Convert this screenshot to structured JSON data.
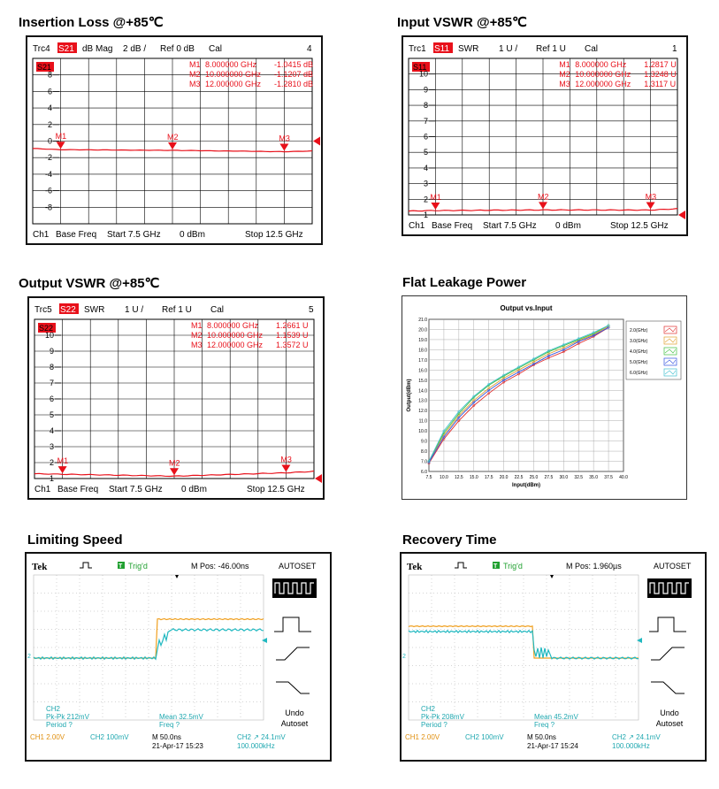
{
  "colors": {
    "marker_red": "#e8101a",
    "grid": "#000000",
    "scope_bg": "#ffffff",
    "ch1": "#f0a020",
    "ch2": "#20b8c0",
    "scope_text": "#20a8b0",
    "scope_orange": "#e09010"
  },
  "vna": [
    {
      "title": "Insertion Loss @+85℃",
      "header": {
        "trc": "Trc4",
        "param": "S21",
        "fmt": "dB Mag",
        "scale": "2 dB /",
        "ref": "Ref 0 dB",
        "cal": "Cal",
        "num": "4"
      },
      "badge": "S21",
      "y_ticks": [
        "8",
        "6",
        "4",
        "2",
        "0",
        "-2",
        "-4",
        "-6",
        "-8"
      ],
      "markers_text": [
        [
          "M1",
          "8.000000 GHz",
          "-1.0415 dB"
        ],
        [
          "M2",
          "10.000000 GHz",
          "-1.1207 dB"
        ],
        [
          "M3",
          "12.000000 GHz",
          "-1.2810 dB"
        ]
      ],
      "marker_labels": [
        "M1",
        "M2",
        "M3"
      ],
      "footer": {
        "ch": "Ch1",
        "base": "Base Freq",
        "start": "Start  7.5 GHz",
        "power": "0 dBm",
        "stop": "Stop  12.5 GHz"
      }
    },
    {
      "title": "Input VSWR @+85℃",
      "header": {
        "trc": "Trc1",
        "param": "S11",
        "fmt": "SWR",
        "scale": "1 U /",
        "ref": "Ref 1 U",
        "cal": "Cal",
        "num": "1"
      },
      "badge": "S11",
      "y_ticks": [
        "10",
        "9",
        "8",
        "7",
        "6",
        "5",
        "4",
        "3",
        "2",
        "1"
      ],
      "markers_text": [
        [
          "M1",
          "8.000000 GHz",
          "1.2817 U"
        ],
        [
          "M2",
          "10.000000 GHz",
          "1.3248 U"
        ],
        [
          "M3",
          "12.000000 GHz",
          "1.3117 U"
        ]
      ],
      "marker_labels": [
        "M1",
        "M2",
        "M3"
      ],
      "footer": {
        "ch": "Ch1",
        "base": "Base Freq",
        "start": "Start  7.5 GHz",
        "power": "0 dBm",
        "stop": "Stop  12.5 GHz"
      }
    },
    {
      "title": "Output VSWR @+85℃",
      "header": {
        "trc": "Trc5",
        "param": "S22",
        "fmt": "SWR",
        "scale": "1 U /",
        "ref": "Ref 1 U",
        "cal": "Cal",
        "num": "5"
      },
      "badge": "S22",
      "y_ticks": [
        "10",
        "9",
        "8",
        "7",
        "6",
        "5",
        "4",
        "3",
        "2",
        "1"
      ],
      "markers_text": [
        [
          "M1",
          "8.000000 GHz",
          "1.2661 U"
        ],
        [
          "M2",
          "10.000000 GHz",
          "1.1539 U"
        ],
        [
          "M3",
          "12.000000 GHz",
          "1.3572 U"
        ]
      ],
      "marker_labels": [
        "M1",
        "M2",
        "M3"
      ],
      "footer": {
        "ch": "Ch1",
        "base": "Base Freq",
        "start": "Start  7.5 GHz",
        "power": "0 dBm",
        "stop": "Stop  12.5 GHz"
      }
    }
  ],
  "leakage": {
    "title": "Flat Leakage Power",
    "chart_title": "Output vs.Input",
    "xlabel": "Input(dBm)",
    "ylabel": "Output(dBm)",
    "x_ticks": [
      "7.5",
      "10.0",
      "12.5",
      "15.0",
      "17.5",
      "20.0",
      "22.5",
      "25.0",
      "27.5",
      "30.0",
      "32.5",
      "35.0",
      "37.5",
      "40.0"
    ],
    "y_ticks": [
      "21.0",
      "20.0",
      "19.0",
      "18.0",
      "17.0",
      "16.0",
      "15.0",
      "14.0",
      "13.0",
      "12.0",
      "11.0",
      "10.0",
      "9.0",
      "8.0",
      "7.0",
      "6.0"
    ],
    "legend": [
      "2.0(GHz)",
      "3.0(GHz)",
      "4.0(GHz)",
      "5.0(GHz)",
      "6.0(GHz)"
    ]
  },
  "scopes": [
    {
      "title": "Limiting Speed",
      "brand": "Tek",
      "trig": "Trig'd",
      "mpos": "M Pos: -46.00ns",
      "autoset": "AUTOSET",
      "meas": {
        "ch": "CH2",
        "pkpk": "Pk-Pk 212mV",
        "period": "Period ?",
        "mean": "Mean 32.5mV",
        "freq": "Freq ?"
      },
      "undo": "Undo",
      "undo2": "Autoset",
      "bottom": {
        "ch1": "CH1  2.00V",
        "ch2": "CH2  100mV",
        "time": "M 50.0ns",
        "date": "21-Apr-17 15:23",
        "trig": "CH2 ↗ 24.1mV",
        "freq": "100.000kHz"
      }
    },
    {
      "title": "Recovery Time",
      "brand": "Tek",
      "trig": "Trig'd",
      "mpos": "M Pos: 1.960µs",
      "autoset": "AUTOSET",
      "meas": {
        "ch": "CH2",
        "pkpk": "Pk-Pk 208mV",
        "period": "Period ?",
        "mean": "Mean 45.2mV",
        "freq": "Freq ?"
      },
      "undo": "Undo",
      "undo2": "Autoset",
      "bottom": {
        "ch1": "CH1  2.00V",
        "ch2": "CH2  100mV",
        "time": "M 50.0ns",
        "date": "21-Apr-17 15:24",
        "trig": "CH2 ↗ 24.1mV",
        "freq": "100.000kHz"
      }
    }
  ],
  "chart_data": [
    {
      "type": "line",
      "title": "",
      "ylabel": "",
      "x": [
        7.5,
        8,
        10,
        12,
        12.5
      ],
      "series": [
        {
          "name": "S21",
          "values": [
            -0.9,
            -1.04,
            -1.12,
            -1.28,
            -1.2
          ]
        }
      ],
      "ylim": [
        -10,
        10
      ],
      "xlim": [
        7.5,
        12.5
      ]
    },
    {
      "type": "line",
      "title": "",
      "ylabel": "",
      "x": [
        7.5,
        8,
        10,
        12,
        12.5
      ],
      "series": [
        {
          "name": "S11",
          "values": [
            1.25,
            1.28,
            1.32,
            1.31,
            1.4
          ]
        }
      ],
      "ylim": [
        1,
        11
      ],
      "xlim": [
        7.5,
        12.5
      ]
    },
    {
      "type": "line",
      "title": "",
      "ylabel": "",
      "x": [
        7.5,
        8,
        10,
        12,
        12.5
      ],
      "series": [
        {
          "name": "S22",
          "values": [
            1.3,
            1.27,
            1.15,
            1.36,
            1.45
          ]
        }
      ],
      "ylim": [
        1,
        11
      ],
      "xlim": [
        7.5,
        12.5
      ]
    },
    {
      "type": "line",
      "title": "Output vs.Input",
      "xlabel": "Input(dBm)",
      "ylabel": "Output(dBm)",
      "xlim": [
        7.5,
        40.0
      ],
      "ylim": [
        6.0,
        21.0
      ],
      "x": [
        7.5,
        10,
        12.5,
        15,
        17.5,
        20,
        22.5,
        25,
        27.5,
        30,
        32.5,
        35,
        37.5
      ],
      "series": [
        {
          "name": "2.0(GHz)",
          "values": [
            6.8,
            9.2,
            11.0,
            12.5,
            13.7,
            14.8,
            15.6,
            16.5,
            17.2,
            17.8,
            18.6,
            19.3,
            20.2
          ]
        },
        {
          "name": "3.0(GHz)",
          "values": [
            7.0,
            9.6,
            11.5,
            13.0,
            14.2,
            15.2,
            16.0,
            16.8,
            17.6,
            18.2,
            18.9,
            19.5,
            20.3
          ]
        },
        {
          "name": "4.0(GHz)",
          "values": [
            7.0,
            9.8,
            11.7,
            13.3,
            14.5,
            15.4,
            16.2,
            17.0,
            17.8,
            18.4,
            19.0,
            19.6,
            20.4
          ]
        },
        {
          "name": "5.0(GHz)",
          "values": [
            6.9,
            9.4,
            11.3,
            12.8,
            14.0,
            15.0,
            15.8,
            16.6,
            17.4,
            18.0,
            18.8,
            19.4,
            20.2
          ]
        },
        {
          "name": "6.0(GHz)",
          "values": [
            7.0,
            10.0,
            11.9,
            13.4,
            14.6,
            15.5,
            16.3,
            17.1,
            17.9,
            18.5,
            19.1,
            19.7,
            20.4
          ]
        }
      ]
    }
  ]
}
